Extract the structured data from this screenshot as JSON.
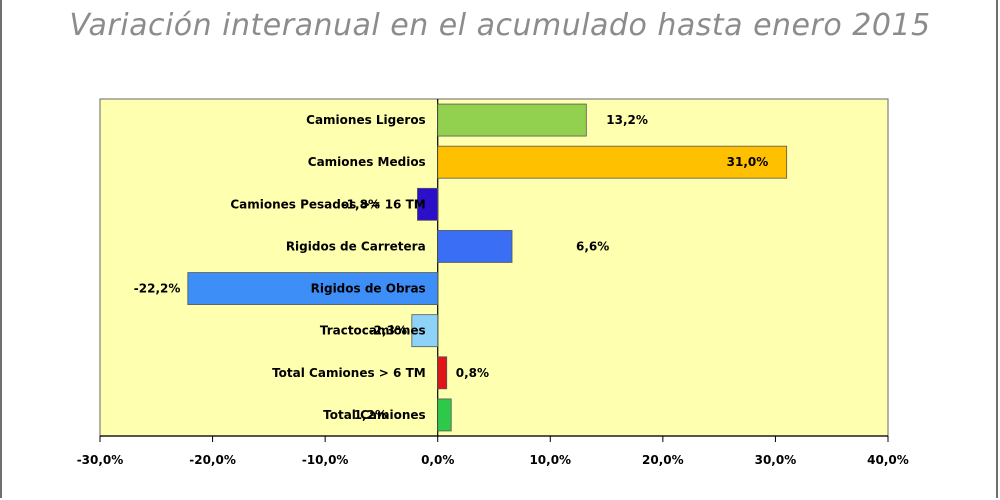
{
  "chart_data": {
    "type": "bar",
    "orientation": "horizontal",
    "title": "Variación interanual en el acumulado hasta enero 2015",
    "categories": [
      "Camiones Ligeros",
      "Camiones Medios",
      "Camiones Pesados >= 16 TM",
      "Rigidos de Carretera",
      "Rigidos de Obras",
      "Tractocamiones",
      "Total Camiones  > 6 TM",
      "Total Camiones"
    ],
    "values": [
      13.2,
      31.0,
      -1.8,
      6.6,
      -22.2,
      -2.3,
      0.8,
      1.2
    ],
    "data_labels": [
      "13,2%",
      "31,0%",
      "-1,8%",
      "6,6%",
      "-22,2%",
      "-2,3%",
      "0,8%",
      "1,2%"
    ],
    "colors": [
      "#92d050",
      "#ffc000",
      "#2b0fc9",
      "#3a6ff5",
      "#3d8ef7",
      "#8fd2f8",
      "#e01515",
      "#2ec94a"
    ],
    "xlim": [
      -30,
      40
    ],
    "xticks": [
      -30,
      -20,
      -10,
      0,
      10,
      20,
      30,
      40
    ],
    "xtick_labels": [
      "-30,0%",
      "-20,0%",
      "-10,0%",
      "0,0%",
      "10,0%",
      "20,0%",
      "30,0%",
      "40,0%"
    ],
    "plot_background": "#ffffb0",
    "xlabel": "",
    "ylabel": ""
  }
}
